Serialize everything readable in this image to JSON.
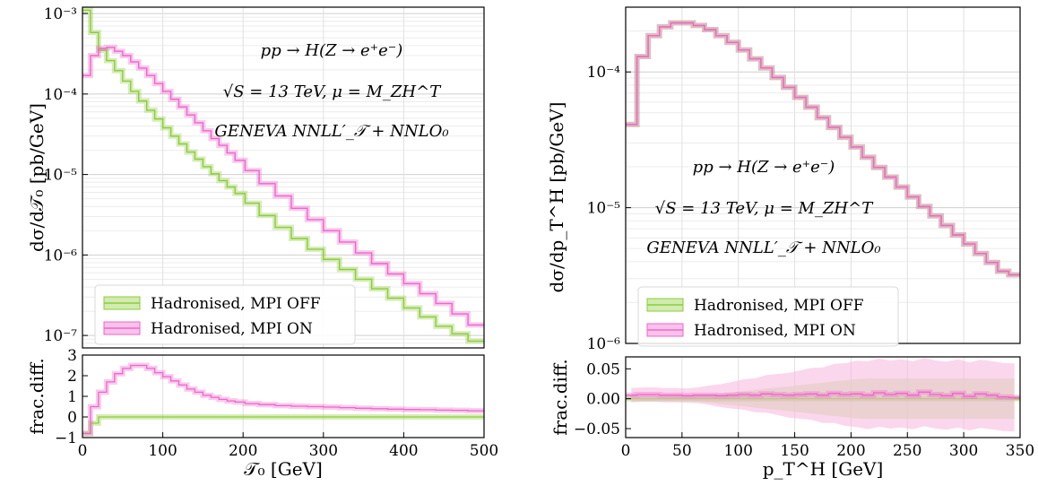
{
  "chart_data": [
    {
      "type": "line",
      "panel": "left",
      "xlabel": "𝒯₀   [GeV]",
      "ylabel": "dσ/d𝒯₀   [pb/GeV]",
      "ratio_ylabel": "frac.diff.",
      "xlim": [
        0,
        500
      ],
      "ylim": [
        7e-08,
        0.0012
      ],
      "yscale": "log",
      "ratio_ylim": [
        -1,
        3
      ],
      "grid": true,
      "legend_position": "bottom-left",
      "x_ticks": [
        "0",
        "100",
        "200",
        "300",
        "400",
        "500"
      ],
      "y_ticks": [
        "10⁻³",
        "10⁻⁴",
        "10⁻⁵",
        "10⁻⁶",
        "10⁻⁷"
      ],
      "ratio_ticks": [
        "3",
        "2",
        "1",
        "0",
        "−1"
      ],
      "annotations": [
        "pp → H(Z → e⁺e⁻)",
        "√S = 13 TeV,  μ = M_ZH^T",
        "GENEVA   NNLL′_𝒯 + NNLO₀"
      ],
      "x": [
        5,
        15,
        25,
        35,
        45,
        55,
        65,
        75,
        85,
        95,
        105,
        115,
        125,
        135,
        145,
        155,
        165,
        175,
        185,
        195,
        210,
        230,
        250,
        270,
        290,
        310,
        330,
        350,
        370,
        390,
        410,
        430,
        450,
        470,
        490
      ],
      "series": [
        {
          "name": "Hadronised, MPI OFF",
          "color": "#8ccc3a",
          "values": [
            0.0011,
            0.00058,
            0.00035,
            0.00026,
            0.000195,
            0.000145,
            0.000108,
            8.2e-05,
            6.3e-05,
            4.9e-05,
            3.8e-05,
            3e-05,
            2.4e-05,
            1.9e-05,
            1.55e-05,
            1.25e-05,
            1.02e-05,
            8.4e-06,
            7e-06,
            5.8e-06,
            4.4e-06,
            3.1e-06,
            2.2e-06,
            1.6e-06,
            1.18e-06,
            8.8e-07,
            6.6e-07,
            5e-07,
            3.8e-07,
            2.9e-07,
            2.2e-07,
            1.7e-07,
            1.3e-07,
            1.05e-07,
            8.5e-08
          ],
          "ratio_values": [
            -0.8,
            -0.3,
            0.0,
            0.0,
            0.0,
            0.0,
            0.0,
            0.0,
            0.0,
            0.0,
            0.0,
            0.0,
            0.0,
            0.0,
            0.0,
            0.0,
            0.0,
            0.0,
            0.0,
            0.0,
            0.0,
            0.0,
            0.0,
            0.0,
            0.0,
            0.0,
            0.0,
            0.0,
            0.0,
            0.0,
            0.0,
            0.0,
            0.0,
            0.0,
            0.0
          ]
        },
        {
          "name": "Hadronised, MPI ON",
          "color": "#ee66cc",
          "values": [
            0.00017,
            0.0003,
            0.00037,
            0.00038,
            0.00034,
            0.0003,
            0.00025,
            0.00021,
            0.00017,
            0.000135,
            0.000108,
            8.6e-05,
            6.9e-05,
            5.5e-05,
            4.4e-05,
            3.5e-05,
            2.8e-05,
            2.3e-05,
            1.85e-05,
            1.5e-05,
            1.12e-05,
            7.7e-06,
            5.4e-06,
            3.8e-06,
            2.75e-06,
            2e-06,
            1.45e-06,
            1.06e-06,
            7.8e-07,
            5.8e-07,
            4.4e-07,
            3.3e-07,
            2.5e-07,
            1.85e-07,
            1.35e-07
          ],
          "ratio_values": [
            -0.8,
            0.5,
            1.2,
            1.7,
            2.1,
            2.35,
            2.5,
            2.5,
            2.35,
            2.15,
            1.95,
            1.75,
            1.55,
            1.35,
            1.2,
            1.05,
            0.95,
            0.85,
            0.78,
            0.72,
            0.65,
            0.6,
            0.55,
            0.52,
            0.5,
            0.48,
            0.45,
            0.42,
            0.4,
            0.38,
            0.36,
            0.35,
            0.33,
            0.32,
            0.3
          ]
        }
      ]
    },
    {
      "type": "line",
      "panel": "right",
      "xlabel": "p_T^H   [GeV]",
      "ylabel": "dσ/dp_T^H   [pb/GeV]",
      "ratio_ylabel": "frac.diff.",
      "xlim": [
        0,
        350
      ],
      "ylim": [
        1e-06,
        0.0003
      ],
      "yscale": "log",
      "ratio_ylim": [
        -0.065,
        0.07
      ],
      "grid": true,
      "legend_position": "bottom-left",
      "x_ticks": [
        "0",
        "50",
        "100",
        "150",
        "200",
        "250",
        "300",
        "350"
      ],
      "y_ticks": [
        "10⁻⁴",
        "10⁻⁵",
        "10⁻⁶"
      ],
      "ratio_ticks": [
        "0.05",
        "0.00",
        "−0.05"
      ],
      "annotations": [
        "pp → H(Z → e⁺e⁻)",
        "√S = 13 TeV,  μ = M_ZH^T",
        "GENEVA   NNLL′_𝒯 + NNLO₀"
      ],
      "x": [
        5,
        15,
        25,
        35,
        45,
        55,
        65,
        75,
        85,
        95,
        105,
        115,
        125,
        135,
        145,
        155,
        165,
        175,
        185,
        195,
        205,
        215,
        225,
        235,
        245,
        255,
        265,
        275,
        285,
        295,
        305,
        315,
        325,
        335,
        345
      ],
      "series": [
        {
          "name": "Hadronised, MPI OFF",
          "color": "#8ccc3a",
          "values": [
            4.1e-05,
            0.00013,
            0.000185,
            0.000215,
            0.00023,
            0.00023,
            0.00022,
            0.000205,
            0.000185,
            0.000165,
            0.000145,
            0.000125,
            0.000107,
            9.1e-05,
            7.7e-05,
            6.5e-05,
            5.5e-05,
            4.6e-05,
            3.9e-05,
            3.3e-05,
            2.8e-05,
            2.35e-05,
            1.98e-05,
            1.68e-05,
            1.42e-05,
            1.2e-05,
            1.02e-05,
            8.7e-06,
            7.4e-06,
            6.3e-06,
            5.4e-06,
            4.6e-06,
            3.95e-06,
            3.4e-06,
            3.2e-06
          ],
          "ratio_values": [
            0,
            0,
            0,
            0,
            0,
            0,
            0,
            0,
            0,
            0,
            0,
            0,
            0,
            0,
            0,
            0,
            0,
            0,
            0,
            0,
            0,
            0,
            0,
            0,
            0,
            0,
            0,
            0,
            0,
            0,
            0,
            0,
            0,
            0,
            0
          ]
        },
        {
          "name": "Hadronised, MPI ON",
          "color": "#ee66cc",
          "values": [
            4.1e-05,
            0.00013,
            0.000185,
            0.000215,
            0.00023,
            0.00023,
            0.00022,
            0.000205,
            0.000185,
            0.000165,
            0.000145,
            0.000125,
            0.000107,
            9.1e-05,
            7.7e-05,
            6.5e-05,
            5.5e-05,
            4.6e-05,
            3.9e-05,
            3.3e-05,
            2.8e-05,
            2.35e-05,
            1.98e-05,
            1.68e-05,
            1.42e-05,
            1.2e-05,
            1.02e-05,
            8.7e-06,
            7.4e-06,
            6.3e-06,
            5.4e-06,
            4.6e-06,
            3.95e-06,
            3.4e-06,
            3.2e-06
          ],
          "ratio_values": [
            0.006,
            0.007,
            0.007,
            0.006,
            0.006,
            0.005,
            0.006,
            0.006,
            0.005,
            0.006,
            0.007,
            0.006,
            0.008,
            0.007,
            0.006,
            0.007,
            0.008,
            0.006,
            0.009,
            0.007,
            0.008,
            0.006,
            0.01,
            0.007,
            0.009,
            0.006,
            0.011,
            0.007,
            0.005,
            0.009,
            0.004,
            0.008,
            0.006,
            0.003,
            0.002
          ]
        }
      ]
    }
  ]
}
